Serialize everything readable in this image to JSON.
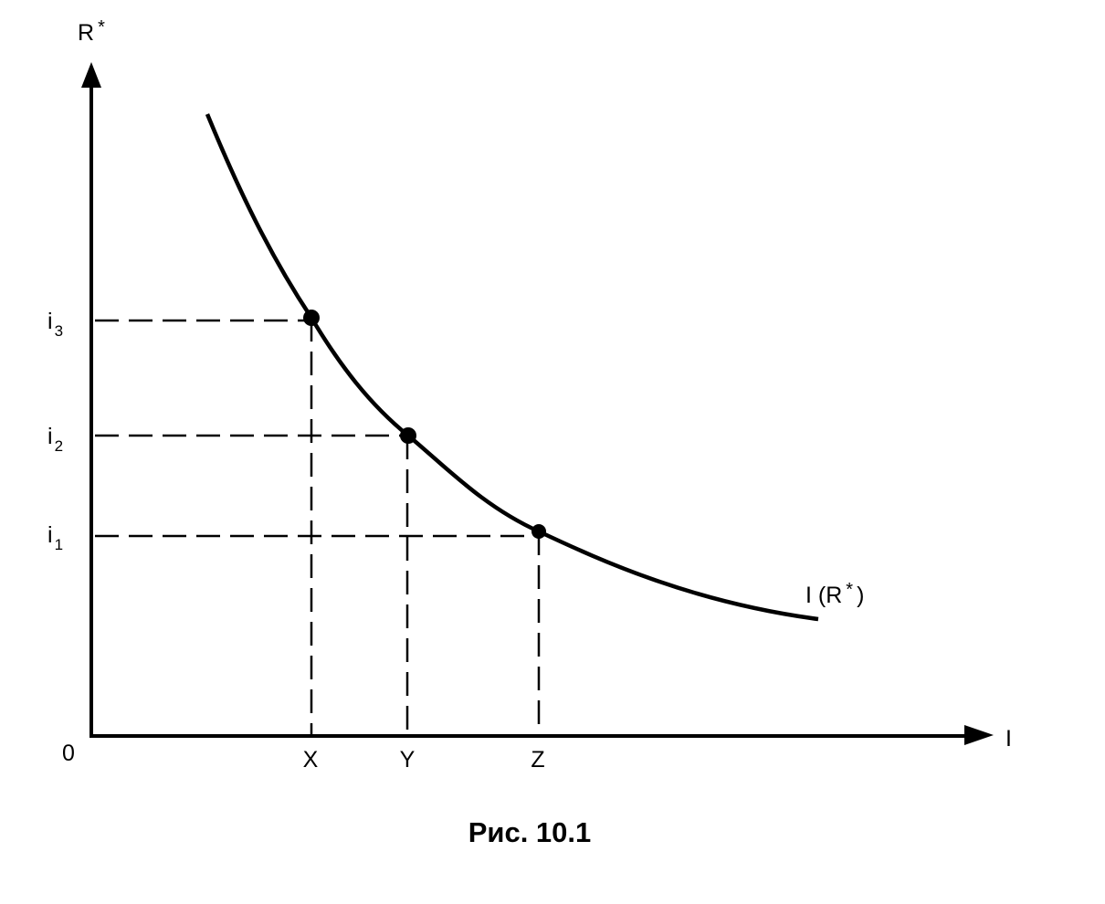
{
  "diagram": {
    "y_axis_label": "R",
    "y_axis_label_sup": "*",
    "x_axis_label": "I",
    "origin_label": "0",
    "curve_label": "I (R",
    "curve_label_sup": "*",
    "curve_label_close": ")",
    "y_ticks": [
      {
        "base": "i",
        "sub": "3"
      },
      {
        "base": "i",
        "sub": "2"
      },
      {
        "base": "i",
        "sub": "1"
      }
    ],
    "x_ticks": [
      "X",
      "Y",
      "Z"
    ],
    "caption": "Рис. 10.1",
    "line_color": "#000000"
  }
}
